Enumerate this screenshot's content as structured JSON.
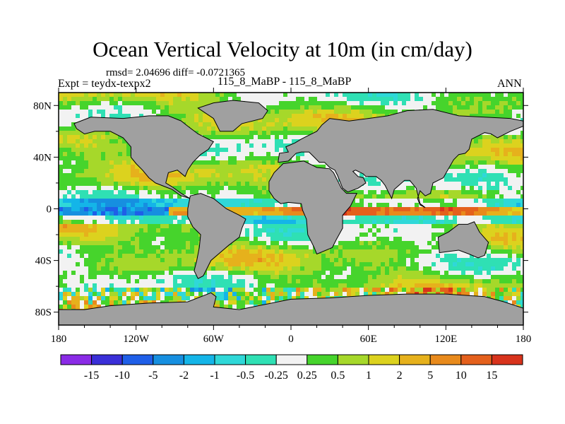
{
  "header": {
    "title": "Ocean Vertical Velocity at 10m (in cm/day)",
    "stats": "rmsd= 2.04696 diff= -0.0721365",
    "expt": "Expt = teydx-texpx2",
    "case": "115_8_MaBP - 115_8_MaBP",
    "season": "ANN"
  },
  "chart_data": {
    "type": "heatmap",
    "title": "Ocean Vertical Velocity at 10m (in cm/day)",
    "xlabel": "",
    "ylabel": "",
    "x_ticks": [
      "180",
      "120W",
      "60W",
      "0",
      "60E",
      "120E",
      "180"
    ],
    "x_tick_values": [
      -180,
      -120,
      -60,
      0,
      60,
      120,
      180
    ],
    "y_ticks": [
      "80N",
      "40N",
      "0",
      "40S",
      "80S"
    ],
    "y_tick_values": [
      80,
      40,
      0,
      -40,
      -80
    ],
    "xlim": [
      -180,
      180
    ],
    "ylim": [
      -90,
      90
    ],
    "colorbar": {
      "labels": [
        "-15",
        "-10",
        "-5",
        "-2",
        "-1",
        "-0.5",
        "-0.25",
        "0.25",
        "0.5",
        "1",
        "2",
        "5",
        "10",
        "15"
      ],
      "colors": [
        "#8a2be6",
        "#3a2fd8",
        "#1f5fe8",
        "#168fe0",
        "#14b5e8",
        "#2fd8d8",
        "#2fe0b4",
        "#f2f2f2",
        "#46d42c",
        "#a6d82a",
        "#dcd21e",
        "#e6b11c",
        "#e88a1c",
        "#e4601c",
        "#d8331c"
      ]
    },
    "land_color": "#a0a0a0",
    "land_outlines": {
      "north_america": [
        [
          -168,
          66
        ],
        [
          -155,
          71
        ],
        [
          -130,
          70
        ],
        [
          -110,
          72
        ],
        [
          -95,
          72
        ],
        [
          -85,
          68
        ],
        [
          -80,
          64
        ],
        [
          -72,
          58
        ],
        [
          -60,
          52
        ],
        [
          -64,
          46
        ],
        [
          -70,
          42
        ],
        [
          -76,
          36
        ],
        [
          -80,
          30
        ],
        [
          -82,
          25
        ],
        [
          -88,
          30
        ],
        [
          -95,
          28
        ],
        [
          -97,
          20
        ],
        [
          -92,
          17
        ],
        [
          -85,
          12
        ],
        [
          -80,
          9
        ],
        [
          -78,
          8
        ],
        [
          -85,
          10
        ],
        [
          -92,
          15
        ],
        [
          -105,
          20
        ],
        [
          -110,
          24
        ],
        [
          -115,
          30
        ],
        [
          -120,
          35
        ],
        [
          -124,
          40
        ],
        [
          -124,
          48
        ],
        [
          -130,
          55
        ],
        [
          -140,
          60
        ],
        [
          -152,
          60
        ],
        [
          -160,
          58
        ],
        [
          -166,
          62
        ],
        [
          -168,
          66
        ]
      ],
      "greenland": [
        [
          -55,
          60
        ],
        [
          -45,
          60
        ],
        [
          -38,
          66
        ],
        [
          -22,
          70
        ],
        [
          -18,
          76
        ],
        [
          -25,
          82
        ],
        [
          -45,
          84
        ],
        [
          -60,
          82
        ],
        [
          -72,
          78
        ],
        [
          -60,
          70
        ],
        [
          -55,
          60
        ]
      ],
      "south_america": [
        [
          -78,
          10
        ],
        [
          -70,
          12
        ],
        [
          -60,
          8
        ],
        [
          -50,
          0
        ],
        [
          -40,
          -5
        ],
        [
          -35,
          -8
        ],
        [
          -38,
          -15
        ],
        [
          -40,
          -22
        ],
        [
          -48,
          -28
        ],
        [
          -55,
          -34
        ],
        [
          -62,
          -40
        ],
        [
          -65,
          -46
        ],
        [
          -68,
          -52
        ],
        [
          -72,
          -54
        ],
        [
          -75,
          -48
        ],
        [
          -73,
          -40
        ],
        [
          -71,
          -30
        ],
        [
          -70,
          -20
        ],
        [
          -76,
          -14
        ],
        [
          -80,
          -6
        ],
        [
          -80,
          0
        ],
        [
          -78,
          10
        ]
      ],
      "eurasia": [
        [
          -10,
          36
        ],
        [
          -9,
          43
        ],
        [
          -2,
          44
        ],
        [
          -4,
          48
        ],
        [
          3,
          51
        ],
        [
          8,
          54
        ],
        [
          12,
          56
        ],
        [
          20,
          60
        ],
        [
          24,
          65
        ],
        [
          30,
          70
        ],
        [
          45,
          68
        ],
        [
          60,
          70
        ],
        [
          75,
          72
        ],
        [
          90,
          76
        ],
        [
          110,
          77
        ],
        [
          130,
          72
        ],
        [
          150,
          71
        ],
        [
          170,
          70
        ],
        [
          180,
          68
        ],
        [
          180,
          64
        ],
        [
          170,
          60
        ],
        [
          160,
          55
        ],
        [
          155,
          58
        ],
        [
          150,
          59
        ],
        [
          140,
          54
        ],
        [
          138,
          46
        ],
        [
          135,
          43
        ],
        [
          130,
          42
        ],
        [
          126,
          38
        ],
        [
          122,
          31
        ],
        [
          118,
          24
        ],
        [
          110,
          20
        ],
        [
          108,
          12
        ],
        [
          104,
          10
        ],
        [
          100,
          14
        ],
        [
          98,
          8
        ],
        [
          100,
          3
        ],
        [
          104,
          1
        ],
        [
          100,
          4
        ],
        [
          97,
          16
        ],
        [
          92,
          22
        ],
        [
          88,
          22
        ],
        [
          80,
          15
        ],
        [
          78,
          8
        ],
        [
          73,
          18
        ],
        [
          70,
          22
        ],
        [
          66,
          25
        ],
        [
          58,
          25
        ],
        [
          56,
          27
        ],
        [
          50,
          30
        ],
        [
          48,
          29
        ],
        [
          52,
          25
        ],
        [
          56,
          24
        ],
        [
          58,
          20
        ],
        [
          52,
          16
        ],
        [
          44,
          13
        ],
        [
          40,
          16
        ],
        [
          36,
          26
        ],
        [
          34,
          30
        ],
        [
          30,
          32
        ],
        [
          26,
          36
        ],
        [
          22,
          36
        ],
        [
          18,
          40
        ],
        [
          14,
          44
        ],
        [
          8,
          44
        ],
        [
          4,
          43
        ],
        [
          -2,
          37
        ],
        [
          -10,
          36
        ]
      ],
      "africa": [
        [
          -17,
          21
        ],
        [
          -13,
          28
        ],
        [
          -6,
          35
        ],
        [
          10,
          37
        ],
        [
          20,
          32
        ],
        [
          30,
          31
        ],
        [
          33,
          28
        ],
        [
          36,
          22
        ],
        [
          39,
          16
        ],
        [
          43,
          12
        ],
        [
          51,
          12
        ],
        [
          46,
          2
        ],
        [
          40,
          -5
        ],
        [
          40,
          -15
        ],
        [
          35,
          -24
        ],
        [
          32,
          -30
        ],
        [
          20,
          -35
        ],
        [
          18,
          -30
        ],
        [
          13,
          -20
        ],
        [
          12,
          -8
        ],
        [
          9,
          -1
        ],
        [
          8,
          4
        ],
        [
          -2,
          5
        ],
        [
          -8,
          4
        ],
        [
          -13,
          8
        ],
        [
          -17,
          14
        ],
        [
          -17,
          21
        ]
      ],
      "australia": [
        [
          114,
          -22
        ],
        [
          122,
          -18
        ],
        [
          130,
          -12
        ],
        [
          137,
          -12
        ],
        [
          142,
          -10
        ],
        [
          146,
          -18
        ],
        [
          153,
          -26
        ],
        [
          150,
          -36
        ],
        [
          145,
          -38
        ],
        [
          138,
          -35
        ],
        [
          130,
          -32
        ],
        [
          115,
          -34
        ],
        [
          114,
          -22
        ]
      ],
      "antarctica": [
        [
          -180,
          -78
        ],
        [
          -160,
          -78
        ],
        [
          -140,
          -75
        ],
        [
          -110,
          -73
        ],
        [
          -80,
          -72
        ],
        [
          -62,
          -65
        ],
        [
          -58,
          -68
        ],
        [
          -60,
          -76
        ],
        [
          -40,
          -78
        ],
        [
          -20,
          -74
        ],
        [
          0,
          -70
        ],
        [
          30,
          -69
        ],
        [
          60,
          -67
        ],
        [
          90,
          -66
        ],
        [
          120,
          -66
        ],
        [
          150,
          -68
        ],
        [
          165,
          -72
        ],
        [
          180,
          -77
        ],
        [
          180,
          -90
        ],
        [
          -180,
          -90
        ],
        [
          -180,
          -78
        ]
      ]
    }
  }
}
